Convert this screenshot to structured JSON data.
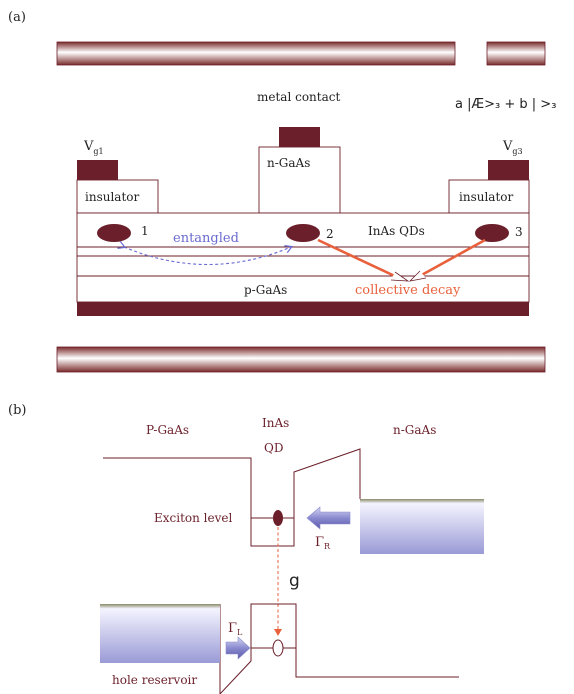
{
  "panel_a": {
    "label": "(a)",
    "metal_contact": "metal contact",
    "state_expression": "a |Æ>₃ + b |  >₃",
    "gate_left": {
      "main": "V",
      "sub": "g1"
    },
    "gate_right": {
      "main": "V",
      "sub": "g3"
    },
    "insulator_left": "insulator",
    "insulator_right": "insulator",
    "n_gaas": "n-GaAs",
    "dot_1": "1",
    "dot_2": "2",
    "dot_3": "3",
    "entangled": "entangled",
    "inas_qds": "InAs QDs",
    "p_gaas": "p-GaAs",
    "collective_decay": "collective decay"
  },
  "panel_b": {
    "label": "(b)",
    "p_gaas": "P-GaAs",
    "inas_line1": "InAs",
    "inas_line2": "QD",
    "n_gaas": "n-GaAs",
    "exciton_level": "Exciton level",
    "gamma_r": {
      "main": "Γ",
      "sub": "R"
    },
    "g": "g",
    "gamma_l": {
      "main": "Γ",
      "sub": "L"
    },
    "hole_reservoir": "hole reservoir"
  },
  "colors": {
    "maroon": "#6b1f2a",
    "line": "#7a2b36",
    "entangled_blue": "#6a6ad0",
    "decay_orange": "#e8603c",
    "reservoir_blue": "#a8a8dc"
  }
}
